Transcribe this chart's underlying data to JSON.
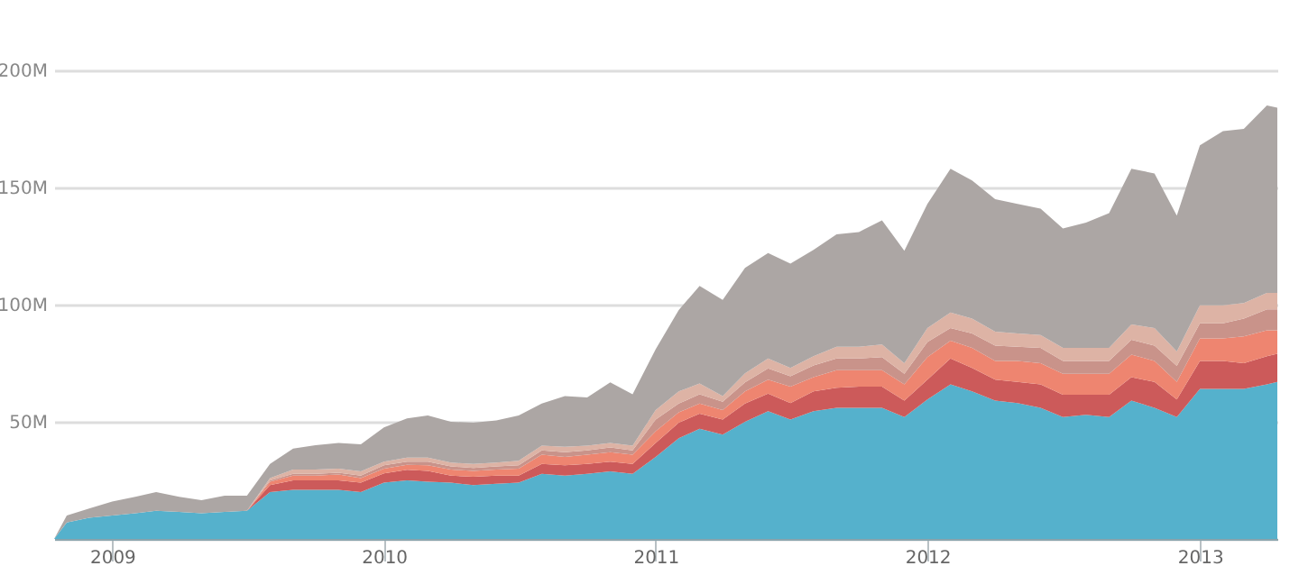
{
  "chart_data": {
    "type": "area",
    "stacked": true,
    "x": [
      "2008-10-15",
      "2008-11",
      "2008-12",
      "2009-01",
      "2009-02",
      "2009-03",
      "2009-04",
      "2009-05",
      "2009-06",
      "2009-07",
      "2009-08",
      "2009-09",
      "2009-10",
      "2009-11",
      "2009-12",
      "2010-01",
      "2010-02",
      "2010-03",
      "2010-04",
      "2010-05",
      "2010-06",
      "2010-07",
      "2010-08",
      "2010-09",
      "2010-10",
      "2010-11",
      "2010-12",
      "2011-01",
      "2011-02",
      "2011-03",
      "2011-04",
      "2011-05",
      "2011-06",
      "2011-07",
      "2011-08",
      "2011-09",
      "2011-10",
      "2011-11",
      "2011-12",
      "2012-01",
      "2012-02",
      "2012-03",
      "2012-04",
      "2012-05",
      "2012-06",
      "2012-07",
      "2012-08",
      "2012-09",
      "2012-10",
      "2012-11",
      "2012-12",
      "2013-01",
      "2013-02",
      "2013-03",
      "2013-04",
      "2013-04-15"
    ],
    "series": [
      {
        "color": "#55b1cc",
        "values": [
          0,
          7,
          9,
          10,
          11,
          12,
          11.5,
          11,
          11.5,
          12,
          20,
          21,
          21,
          21,
          20,
          24,
          25,
          24.4,
          24,
          23,
          23.6,
          24,
          27.8,
          27,
          27.8,
          28.8,
          27.8,
          35,
          43,
          47,
          44.5,
          50,
          54.5,
          51,
          54.5,
          56,
          56,
          56,
          52,
          59.5,
          66,
          63,
          59,
          58,
          56,
          52,
          53,
          52,
          59,
          56,
          52,
          64,
          64,
          64,
          66,
          67
        ]
      },
      {
        "color": "#cc5a5a",
        "values": [
          0,
          0,
          0,
          0,
          0,
          0,
          0,
          0,
          0,
          0,
          3,
          4,
          4,
          4,
          4,
          4,
          4.5,
          4.6,
          3,
          3.5,
          3.4,
          3,
          4.2,
          4.4,
          4.2,
          4.2,
          4.2,
          6,
          6.6,
          6.5,
          6.5,
          7.8,
          7.5,
          7,
          8.5,
          8.5,
          9,
          9,
          7,
          8.5,
          11,
          10,
          9,
          9,
          10,
          9.5,
          8.5,
          9.5,
          10,
          11,
          7.5,
          12,
          12,
          11,
          12,
          12
        ]
      },
      {
        "color": "#ee8570",
        "values": [
          0,
          0,
          0,
          0,
          0,
          0,
          0,
          0,
          0,
          0,
          1.4,
          2,
          2,
          2.5,
          2,
          2,
          2.1,
          2.4,
          2.6,
          2.5,
          2.6,
          3,
          4,
          3.6,
          4,
          4,
          4,
          5,
          4.4,
          4.3,
          4,
          5.2,
          6,
          7,
          6,
          7.5,
          7,
          7,
          7,
          9.6,
          7.6,
          8.5,
          8,
          9,
          9,
          9,
          9,
          9,
          9.7,
          9,
          7.5,
          9.6,
          9.6,
          11.4,
          11,
          10
        ]
      },
      {
        "color": "#c9938a",
        "values": [
          0,
          0,
          0,
          0,
          0,
          0,
          0,
          0,
          0,
          0,
          0.6,
          0.8,
          0.8,
          0.8,
          1,
          1.4,
          1.4,
          1.6,
          1.4,
          1.3,
          1.4,
          1.4,
          1.8,
          2,
          1.8,
          2,
          1.8,
          5,
          3.8,
          3.9,
          3.6,
          3.8,
          4.8,
          4.4,
          5,
          5,
          5,
          5.6,
          4.5,
          6.4,
          5.4,
          6.2,
          6.5,
          6,
          6.5,
          5.5,
          5.5,
          5.5,
          6.3,
          6.5,
          6.8,
          6.4,
          6.4,
          7.6,
          9,
          9
        ]
      },
      {
        "color": "#ddb3a5",
        "values": [
          0,
          0,
          0,
          0,
          0,
          0,
          0,
          0,
          0,
          0,
          1,
          1.8,
          1.8,
          1.7,
          1.8,
          1.6,
          1.7,
          1.7,
          1.6,
          1.7,
          1.6,
          2,
          2,
          2.3,
          2,
          2,
          2,
          4,
          5.2,
          4.6,
          2.4,
          3.9,
          4.2,
          3.6,
          4,
          5,
          5,
          5.4,
          4.5,
          6,
          6.6,
          6.3,
          6,
          5.7,
          5.5,
          5.5,
          5.5,
          5.5,
          6.5,
          7.5,
          6.2,
          7.7,
          7.7,
          6.7,
          7,
          7
        ]
      },
      {
        "color": "#aca6a4",
        "values": [
          0,
          3,
          4,
          6,
          7,
          8,
          6.5,
          5.5,
          7,
          6.5,
          6,
          9,
          10.4,
          11,
          11.6,
          14.6,
          16.7,
          18,
          17.4,
          17.6,
          18,
          19.3,
          18,
          21.7,
          20.6,
          25.8,
          21.9,
          26,
          34.7,
          41.7,
          41,
          45,
          45,
          44.5,
          45.4,
          48,
          49,
          53,
          48,
          53,
          61.4,
          59,
          56.5,
          55.3,
          54,
          51,
          53.5,
          57.5,
          66.5,
          66,
          58,
          68.3,
          74.3,
          74.3,
          80,
          79
        ]
      }
    ],
    "xlim": [
      "2008-10-15",
      "2013-04-15"
    ],
    "xticks": [
      "2009",
      "2010",
      "2011",
      "2012",
      "2013"
    ],
    "ylim": [
      0,
      200
    ],
    "yticks": [
      {
        "value": 0,
        "label": null
      },
      {
        "value": 50,
        "label": "50M"
      },
      {
        "value": 100,
        "label": "100M"
      },
      {
        "value": 150,
        "label": "150M"
      },
      {
        "value": 200,
        "label": "200M"
      }
    ],
    "grid": "y"
  }
}
